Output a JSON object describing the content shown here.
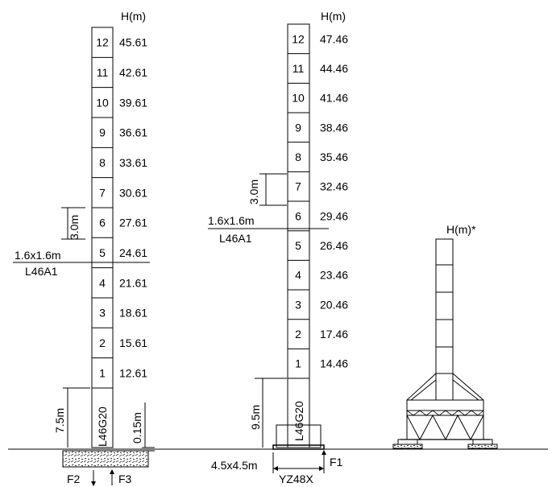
{
  "towers": [
    {
      "axis_title": "H(m)",
      "sections": [
        {
          "n": "12",
          "h": "45.61"
        },
        {
          "n": "11",
          "h": "42.61"
        },
        {
          "n": "10",
          "h": "39.61"
        },
        {
          "n": "9",
          "h": "36.61"
        },
        {
          "n": "8",
          "h": "33.61"
        },
        {
          "n": "7",
          "h": "30.61"
        },
        {
          "n": "6",
          "h": "27.61"
        },
        {
          "n": "5",
          "h": "24.61"
        },
        {
          "n": "4",
          "h": "21.61"
        },
        {
          "n": "3",
          "h": "18.61"
        },
        {
          "n": "2",
          "h": "15.61"
        },
        {
          "n": "1",
          "h": "12.61"
        }
      ],
      "base_label": "L46G20",
      "section_dim": "3.0m",
      "base_dim": "7.5m",
      "foundation_dim": "0.15m",
      "collar_size": "1.6x1.6m",
      "collar_type": "L46A1",
      "forces": [
        "F2",
        "F3"
      ]
    },
    {
      "axis_title": "H(m)",
      "sections": [
        {
          "n": "12",
          "h": "47.46"
        },
        {
          "n": "11",
          "h": "44.46"
        },
        {
          "n": "10",
          "h": "41.46"
        },
        {
          "n": "9",
          "h": "38.46"
        },
        {
          "n": "8",
          "h": "35.46"
        },
        {
          "n": "7",
          "h": "32.46"
        },
        {
          "n": "6",
          "h": "29.46"
        },
        {
          "n": "5",
          "h": "26.46"
        },
        {
          "n": "4",
          "h": "23.46"
        },
        {
          "n": "3",
          "h": "20.46"
        },
        {
          "n": "2",
          "h": "17.46"
        },
        {
          "n": "1",
          "h": "14.46"
        }
      ],
      "base_label": "L46G20",
      "section_dim": "3.0m",
      "base_dim": "9.5m",
      "collar_size": "1.6x1.6m",
      "collar_type": "L46A1",
      "forces": [
        "F1"
      ],
      "base_size": "4.5x4.5m",
      "base_type": "YZ48X"
    }
  ],
  "third_tower": {
    "axis_title": "H(m)*"
  }
}
